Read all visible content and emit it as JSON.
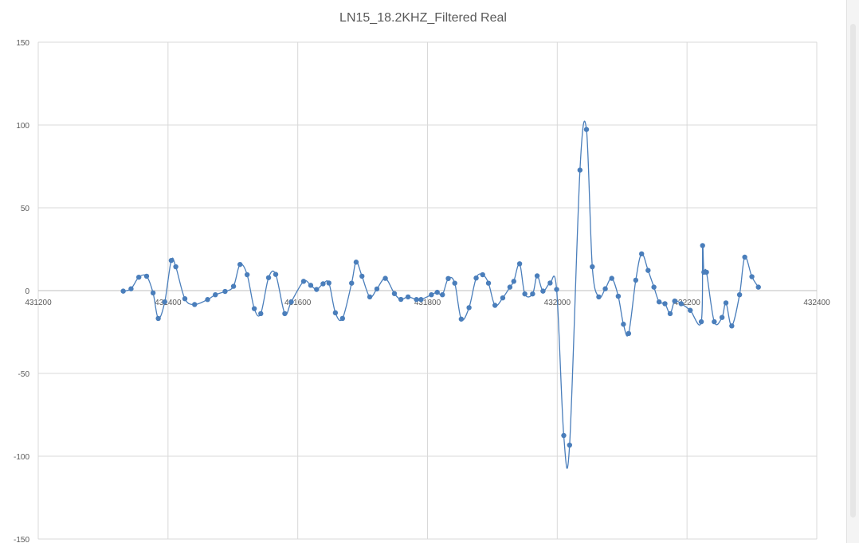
{
  "chart_data": {
    "type": "scatter",
    "title": "LN15_18.2KHZ_Filtered Real",
    "xlim": [
      431200,
      432400
    ],
    "ylim": [
      -150,
      150
    ],
    "x_ticks": [
      431200,
      431400,
      431600,
      431800,
      432000,
      432200,
      432400
    ],
    "y_ticks": [
      -150,
      -100,
      -50,
      0,
      50,
      100,
      150
    ],
    "grid": true,
    "legend": "none",
    "line_color": "#4a7ebb",
    "series": [
      {
        "style": "smooth line with markers",
        "points": [
          [
            431331,
            -0.3
          ],
          [
            431343,
            1.1
          ],
          [
            431355,
            8.1
          ],
          [
            431367,
            8.7
          ],
          [
            431377,
            -1.4
          ],
          [
            431385,
            -16.8
          ],
          [
            431395,
            -6.8
          ],
          [
            431405,
            18.2
          ],
          [
            431412,
            14.4
          ],
          [
            431426,
            -4.9
          ],
          [
            431441,
            -8.4
          ],
          [
            431461,
            -5.4
          ],
          [
            431473,
            -2.5
          ],
          [
            431488,
            -0.5
          ],
          [
            431501,
            2.6
          ],
          [
            431511,
            15.8
          ],
          [
            431522,
            9.6
          ],
          [
            431533,
            -10.9
          ],
          [
            431543,
            -13.9
          ],
          [
            431555,
            7.8
          ],
          [
            431566,
            9.8
          ],
          [
            431580,
            -13.9
          ],
          [
            431590,
            -6.8
          ],
          [
            431609,
            5.6
          ],
          [
            431620,
            3.2
          ],
          [
            431629,
            0.7
          ],
          [
            431639,
            4.1
          ],
          [
            431648,
            4.6
          ],
          [
            431658,
            -13.4
          ],
          [
            431669,
            -16.8
          ],
          [
            431683,
            4.5
          ],
          [
            431690,
            17.2
          ],
          [
            431699,
            8.7
          ],
          [
            431711,
            -3.8
          ],
          [
            431722,
            1.0
          ],
          [
            431735,
            7.4
          ],
          [
            431749,
            -1.8
          ],
          [
            431759,
            -5.3
          ],
          [
            431770,
            -3.8
          ],
          [
            431783,
            -5.4
          ],
          [
            431790,
            -5.4
          ],
          [
            431806,
            -2.5
          ],
          [
            431815,
            -1.0
          ],
          [
            431823,
            -2.5
          ],
          [
            431832,
            7.3
          ],
          [
            431842,
            4.5
          ],
          [
            431852,
            -17.2
          ],
          [
            431864,
            -10.3
          ],
          [
            431875,
            7.6
          ],
          [
            431885,
            9.6
          ],
          [
            431894,
            4.5
          ],
          [
            431904,
            -8.9
          ],
          [
            431916,
            -4.4
          ],
          [
            431927,
            2.1
          ],
          [
            431933,
            5.6
          ],
          [
            431942,
            16.2
          ],
          [
            431950,
            -2.0
          ],
          [
            431962,
            -2.0
          ],
          [
            431969,
            8.9
          ],
          [
            431978,
            -0.3
          ],
          [
            431989,
            4.6
          ],
          [
            431999,
            0.7
          ],
          [
            432010,
            -87.5
          ],
          [
            432019,
            -93.3
          ],
          [
            432035,
            72.8
          ],
          [
            432045,
            97.3
          ],
          [
            432054,
            14.4
          ],
          [
            432064,
            -3.8
          ],
          [
            432074,
            1.1
          ],
          [
            432084,
            7.4
          ],
          [
            432094,
            -3.4
          ],
          [
            432102,
            -20.3
          ],
          [
            432110,
            -25.9
          ],
          [
            432121,
            6.3
          ],
          [
            432130,
            22.2
          ],
          [
            432140,
            12.2
          ],
          [
            432149,
            2.1
          ],
          [
            432157,
            -6.8
          ],
          [
            432166,
            -7.9
          ],
          [
            432174,
            -13.9
          ],
          [
            432181,
            -6.3
          ],
          [
            432191,
            -7.9
          ],
          [
            432205,
            -11.9
          ],
          [
            432222,
            -18.8
          ],
          [
            432224,
            27.2
          ],
          [
            432226,
            11.1
          ],
          [
            432230,
            11.1
          ],
          [
            432242,
            -18.8
          ],
          [
            432254,
            -16.2
          ],
          [
            432260,
            -7.4
          ],
          [
            432269,
            -21.3
          ],
          [
            432281,
            -2.5
          ],
          [
            432289,
            20.2
          ],
          [
            432300,
            8.4
          ],
          [
            432310,
            2.1
          ]
        ]
      }
    ]
  }
}
